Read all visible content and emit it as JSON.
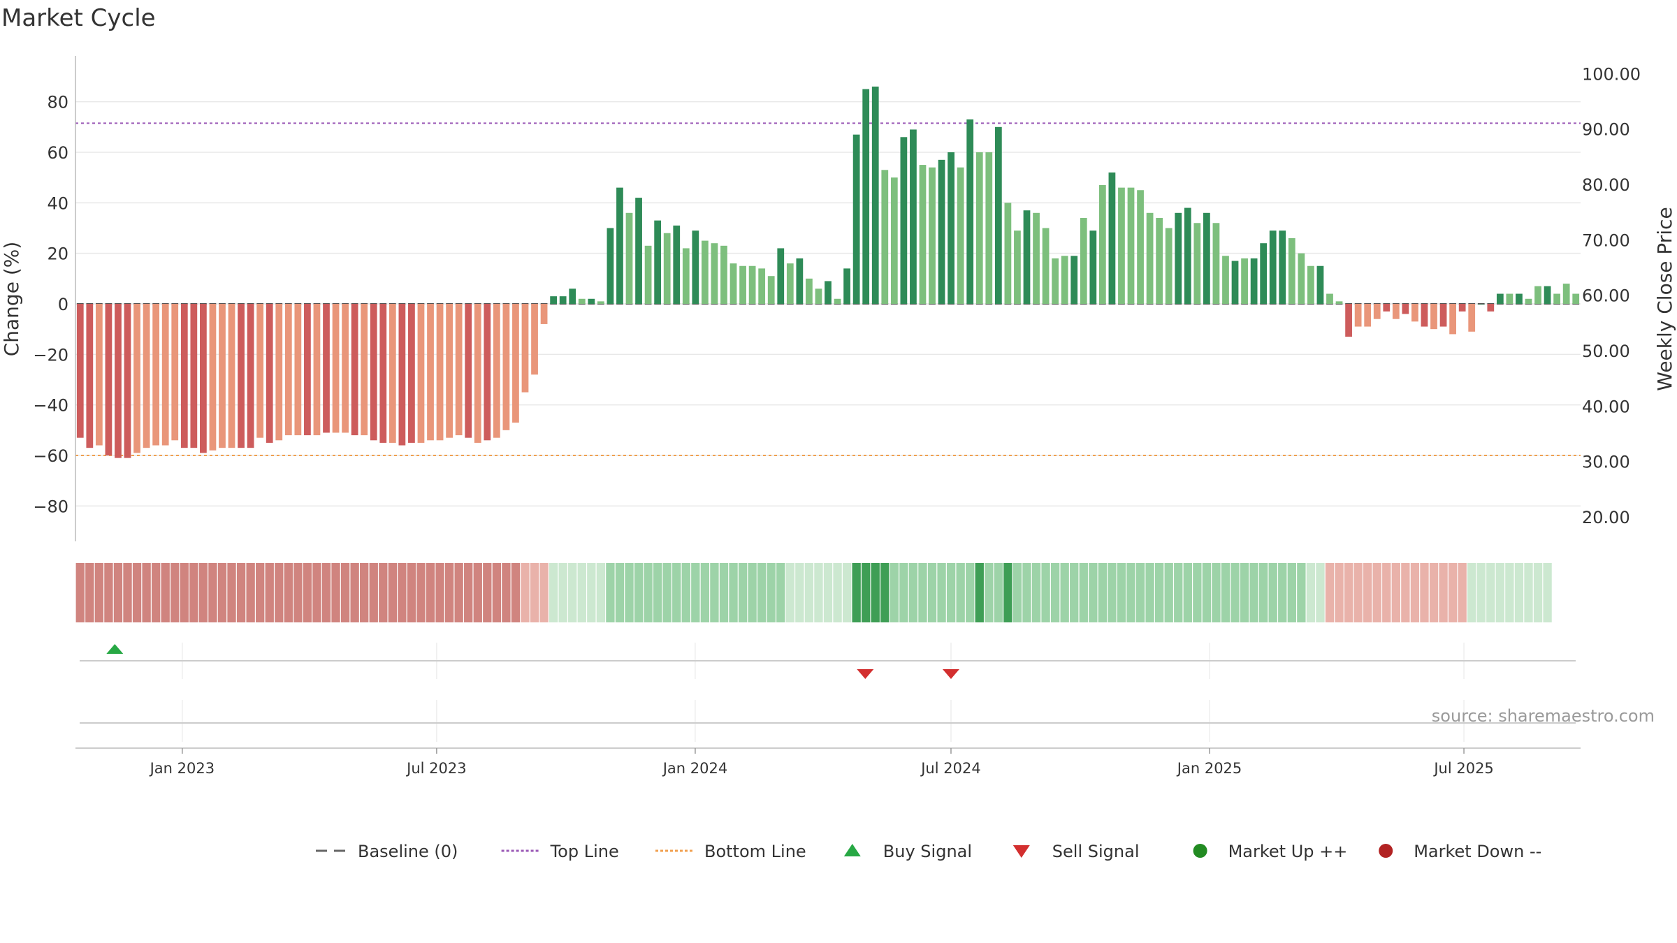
{
  "chart_data": {
    "type": "bar",
    "title": "Market Cycle",
    "ylabel": "Change (%)",
    "y2label": "Weekly Close Price",
    "source": "source: sharemaestro.com",
    "ylim": [
      -94,
      94
    ],
    "y2lim": [
      15.6,
      101.3
    ],
    "yticks": [
      80,
      60,
      40,
      20,
      0,
      -20,
      -40,
      -60,
      -80
    ],
    "ytick_labels": [
      "80",
      "60",
      "40",
      "20",
      "0",
      "−20",
      "−40",
      "−60",
      "−80"
    ],
    "y2ticks": [
      "100.00",
      "90.00",
      "80.00",
      "70.00",
      "60.00",
      "50.00",
      "40.00",
      "30.00",
      "20.00"
    ],
    "y2tick_values": [
      100,
      90,
      80,
      70,
      60,
      50,
      40,
      30,
      20
    ],
    "top_line": 71.5,
    "bottom_line": -60,
    "grid": true,
    "x_start": "2022-10-17",
    "x_end": "2025-09-22",
    "xticks": [
      {
        "label": "Jan 2023",
        "date": "2023-01-01"
      },
      {
        "label": "Jul 2023",
        "date": "2023-07-01"
      },
      {
        "label": "Jan 2024",
        "date": "2024-01-01"
      },
      {
        "label": "Jul 2024",
        "date": "2024-07-01"
      },
      {
        "label": "Jan 2025",
        "date": "2025-01-01"
      },
      {
        "label": "Jul 2025",
        "date": "2025-07-01"
      }
    ],
    "start_date": "2022-10-17",
    "values": [
      -53,
      -57,
      -56,
      -60,
      -61,
      -61,
      -59,
      -57,
      -56,
      -56,
      -54,
      -57,
      -57,
      -59,
      -58,
      -57,
      -57,
      -57,
      -57,
      -53,
      -55,
      -54,
      -52,
      -52,
      -52,
      -52,
      -51,
      -51,
      -51,
      -52,
      -52,
      -54,
      -55,
      -55,
      -56,
      -55,
      -55,
      -54,
      -54,
      -53,
      -52,
      -53,
      -55,
      -54,
      -53,
      -50,
      -47,
      -35,
      -28,
      -8,
      3,
      3,
      6,
      2,
      2,
      1,
      30,
      46,
      36,
      42,
      23,
      33,
      28,
      31,
      22,
      29,
      25,
      24,
      23,
      16,
      15,
      15,
      14,
      11,
      22,
      16,
      18,
      10,
      6,
      9,
      2,
      14,
      67,
      85,
      86,
      53,
      50,
      66,
      69,
      55,
      54,
      57,
      60,
      54,
      73,
      60,
      60,
      70,
      40,
      29,
      37,
      36,
      30,
      18,
      19,
      19,
      34,
      29,
      47,
      52,
      46,
      46,
      45,
      36,
      34,
      30,
      36,
      38,
      32,
      36,
      32,
      19,
      17,
      18,
      18,
      24,
      29,
      29,
      26,
      20,
      15,
      15,
      4,
      1,
      -13,
      -9,
      -9,
      -6,
      -3,
      -6,
      -4,
      -7,
      -9,
      -10,
      -9,
      -12,
      -3,
      -11,
      0,
      -3,
      4,
      4,
      4,
      2,
      7,
      7,
      4,
      8,
      4
    ],
    "shades": [
      "dark",
      "dark",
      "light",
      "dark",
      "dark",
      "dark",
      "light",
      "light",
      "light",
      "light",
      "light",
      "dark",
      "dark",
      "dark",
      "light",
      "light",
      "light",
      "dark",
      "dark",
      "light",
      "dark",
      "light",
      "light",
      "light",
      "dark",
      "light",
      "dark",
      "light",
      "light",
      "dark",
      "light",
      "dark",
      "dark",
      "light",
      "dark",
      "dark",
      "light",
      "light",
      "light",
      "light",
      "light",
      "dark",
      "light",
      "dark",
      "light",
      "light",
      "light",
      "light",
      "light",
      "light",
      "dark",
      "dark",
      "dark",
      "light",
      "dark",
      "light",
      "dark",
      "dark",
      "light",
      "dark",
      "light",
      "dark",
      "light",
      "dark",
      "light",
      "dark",
      "light",
      "light",
      "light",
      "light",
      "light",
      "light",
      "light",
      "light",
      "dark",
      "light",
      "dark",
      "light",
      "light",
      "dark",
      "light",
      "dark",
      "dark",
      "dark",
      "dark",
      "light",
      "light",
      "dark",
      "dark",
      "light",
      "light",
      "dark",
      "dark",
      "light",
      "dark",
      "light",
      "light",
      "dark",
      "light",
      "light",
      "dark",
      "light",
      "light",
      "light",
      "light",
      "dark",
      "light",
      "dark",
      "light",
      "dark",
      "light",
      "light",
      "light",
      "light",
      "light",
      "light",
      "dark",
      "dark",
      "light",
      "dark",
      "light",
      "light",
      "dark",
      "light",
      "dark",
      "dark",
      "dark",
      "dark",
      "light",
      "light",
      "light",
      "dark",
      "light",
      "light",
      "dark",
      "light",
      "light",
      "light",
      "dark",
      "light",
      "dark",
      "light",
      "dark",
      "light",
      "dark",
      "light",
      "dark",
      "light",
      "dark",
      "dark",
      "dark",
      "light",
      "dark",
      "light",
      "light",
      "dark",
      "light"
    ],
    "strip": [
      "d",
      "d",
      "d",
      "d",
      "d",
      "d",
      "d",
      "d",
      "d",
      "d",
      "d",
      "d",
      "d",
      "d",
      "d",
      "d",
      "d",
      "d",
      "d",
      "d",
      "d",
      "d",
      "d",
      "d",
      "d",
      "d",
      "d",
      "d",
      "d",
      "d",
      "d",
      "d",
      "d",
      "d",
      "d",
      "d",
      "d",
      "d",
      "d",
      "d",
      "d",
      "d",
      "d",
      "d",
      "d",
      "d",
      "d",
      "dl",
      "dl",
      "dl",
      "ul",
      "ul",
      "ul",
      "ul",
      "ul",
      "ul",
      "um",
      "um",
      "um",
      "um",
      "um",
      "um",
      "um",
      "um",
      "um",
      "um",
      "um",
      "um",
      "um",
      "um",
      "um",
      "um",
      "um",
      "um",
      "um",
      "ul",
      "ul",
      "ul",
      "ul",
      "ul",
      "ul",
      "ul",
      "us",
      "us",
      "us",
      "us",
      "um",
      "um",
      "um",
      "um",
      "um",
      "um",
      "um",
      "um",
      "um",
      "us",
      "um",
      "um",
      "us",
      "um",
      "um",
      "um",
      "um",
      "um",
      "um",
      "um",
      "um",
      "um",
      "um",
      "um",
      "um",
      "um",
      "um",
      "um",
      "um",
      "um",
      "um",
      "um",
      "um",
      "um",
      "um",
      "um",
      "um",
      "um",
      "um",
      "um",
      "um",
      "um",
      "um",
      "um",
      "ul",
      "ul",
      "dl",
      "dl",
      "dl",
      "dl",
      "dl",
      "dl",
      "dl",
      "dl",
      "dl",
      "dl",
      "dl",
      "dl",
      "dl",
      "dl",
      "dl",
      "ul",
      "ul",
      "ul",
      "ul",
      "ul",
      "ul",
      "ul",
      "ul",
      "ul"
    ],
    "buy_signals": [
      "2022-11-14"
    ],
    "sell_signals": [
      "2024-05-01",
      "2024-07-01"
    ],
    "legend": [
      {
        "label": "Baseline (0)",
        "kind": "dash",
        "color": "#666666"
      },
      {
        "label": "Top Line",
        "kind": "dotted",
        "color": "#9b59b6"
      },
      {
        "label": "Bottom Line",
        "kind": "dotted",
        "color": "#f0a050"
      },
      {
        "label": "Buy Signal",
        "kind": "triangle-up",
        "color": "#27a844"
      },
      {
        "label": "Sell Signal",
        "kind": "triangle-down",
        "color": "#d32f2f"
      },
      {
        "label": "Market Up ++",
        "kind": "circle",
        "color": "#228b22"
      },
      {
        "label": "Market Down --",
        "kind": "circle",
        "color": "#b22222"
      }
    ],
    "colors": {
      "pos_dark": "#2e8b57",
      "pos_light": "#7dbf7d",
      "neg_dark": "#cd5c5c",
      "neg_light": "#e9967a",
      "strip_d": "#d0847f",
      "strip_dl": "#e9b2aa",
      "strip_ul": "#cce8d0",
      "strip_um": "#9dd3a8",
      "strip_us": "#3e9e55",
      "top_line": "#9b59b6",
      "bottom_line": "#f0a050"
    }
  }
}
